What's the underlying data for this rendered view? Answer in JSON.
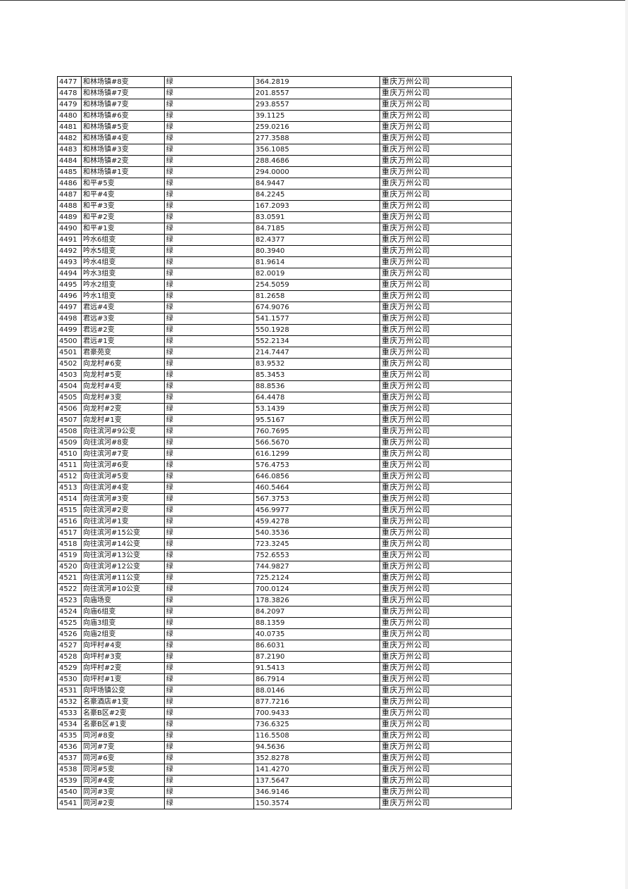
{
  "table": {
    "rows": [
      [
        "4477",
        "和林场镇#8变",
        "绿",
        "364.2819",
        "重庆万州公司"
      ],
      [
        "4478",
        "和林场镇#7变",
        "绿",
        "201.8557",
        "重庆万州公司"
      ],
      [
        "4479",
        "和林场镇#7变",
        "绿",
        "293.8557",
        "重庆万州公司"
      ],
      [
        "4480",
        "和林场镇#6变",
        "绿",
        "39.1125",
        "重庆万州公司"
      ],
      [
        "4481",
        "和林场镇#5变",
        "绿",
        "259.0216",
        "重庆万州公司"
      ],
      [
        "4482",
        "和林场镇#4变",
        "绿",
        "277.3588",
        "重庆万州公司"
      ],
      [
        "4483",
        "和林场镇#3变",
        "绿",
        "356.1085",
        "重庆万州公司"
      ],
      [
        "4484",
        "和林场镇#2变",
        "绿",
        "288.4686",
        "重庆万州公司"
      ],
      [
        "4485",
        "和林场镇#1变",
        "绿",
        "294.0000",
        "重庆万州公司"
      ],
      [
        "4486",
        "和平#5变",
        "绿",
        "84.9447",
        "重庆万州公司"
      ],
      [
        "4487",
        "和平#4变",
        "绿",
        "84.2245",
        "重庆万州公司"
      ],
      [
        "4488",
        "和平#3变",
        "绿",
        "167.2093",
        "重庆万州公司"
      ],
      [
        "4489",
        "和平#2变",
        "绿",
        "83.0591",
        "重庆万州公司"
      ],
      [
        "4490",
        "和平#1变",
        "绿",
        "84.7185",
        "重庆万州公司"
      ],
      [
        "4491",
        "吟水6组变",
        "绿",
        "82.4377",
        "重庆万州公司"
      ],
      [
        "4492",
        "吟水5组变",
        "绿",
        "80.3940",
        "重庆万州公司"
      ],
      [
        "4493",
        "吟水4组变",
        "绿",
        "81.9614",
        "重庆万州公司"
      ],
      [
        "4494",
        "吟水3组变",
        "绿",
        "82.0019",
        "重庆万州公司"
      ],
      [
        "4495",
        "吟水2组变",
        "绿",
        "254.5059",
        "重庆万州公司"
      ],
      [
        "4496",
        "吟水1组变",
        "绿",
        "81.2658",
        "重庆万州公司"
      ],
      [
        "4497",
        "君远#4变",
        "绿",
        "674.9076",
        "重庆万州公司"
      ],
      [
        "4498",
        "君远#3变",
        "绿",
        "541.1577",
        "重庆万州公司"
      ],
      [
        "4499",
        "君远#2变",
        "绿",
        "550.1928",
        "重庆万州公司"
      ],
      [
        "4500",
        "君远#1变",
        "绿",
        "552.2134",
        "重庆万州公司"
      ],
      [
        "4501",
        "君豪苑变",
        "绿",
        "214.7447",
        "重庆万州公司"
      ],
      [
        "4502",
        "向龙村#6变",
        "绿",
        "83.9532",
        "重庆万州公司"
      ],
      [
        "4503",
        "向龙村#5变",
        "绿",
        "85.3453",
        "重庆万州公司"
      ],
      [
        "4504",
        "向龙村#4变",
        "绿",
        "88.8536",
        "重庆万州公司"
      ],
      [
        "4505",
        "向龙村#3变",
        "绿",
        "64.4478",
        "重庆万州公司"
      ],
      [
        "4506",
        "向龙村#2变",
        "绿",
        "53.1439",
        "重庆万州公司"
      ],
      [
        "4507",
        "向龙村#1变",
        "绿",
        "95.5167",
        "重庆万州公司"
      ],
      [
        "4508",
        "向往滨河#9公变",
        "绿",
        "760.7695",
        "重庆万州公司"
      ],
      [
        "4509",
        "向往滨河#8变",
        "绿",
        "566.5670",
        "重庆万州公司"
      ],
      [
        "4510",
        "向往滨河#7变",
        "绿",
        "616.1299",
        "重庆万州公司"
      ],
      [
        "4511",
        "向往滨河#6变",
        "绿",
        "576.4753",
        "重庆万州公司"
      ],
      [
        "4512",
        "向往滨河#5变",
        "绿",
        "646.0856",
        "重庆万州公司"
      ],
      [
        "4513",
        "向往滨河#4变",
        "绿",
        "460.5464",
        "重庆万州公司"
      ],
      [
        "4514",
        "向往滨河#3变",
        "绿",
        "567.3753",
        "重庆万州公司"
      ],
      [
        "4515",
        "向往滨河#2变",
        "绿",
        "456.9977",
        "重庆万州公司"
      ],
      [
        "4516",
        "向往滨河#1变",
        "绿",
        "459.4278",
        "重庆万州公司"
      ],
      [
        "4517",
        "向往滨河#15公变",
        "绿",
        "540.3536",
        "重庆万州公司"
      ],
      [
        "4518",
        "向往滨河#14公变",
        "绿",
        "723.3245",
        "重庆万州公司"
      ],
      [
        "4519",
        "向往滨河#13公变",
        "绿",
        "752.6553",
        "重庆万州公司"
      ],
      [
        "4520",
        "向往滨河#12公变",
        "绿",
        "744.9827",
        "重庆万州公司"
      ],
      [
        "4521",
        "向往滨河#11公变",
        "绿",
        "725.2124",
        "重庆万州公司"
      ],
      [
        "4522",
        "向往滨河#10公变",
        "绿",
        "700.0124",
        "重庆万州公司"
      ],
      [
        "4523",
        "向庙场变",
        "绿",
        "178.3826",
        "重庆万州公司"
      ],
      [
        "4524",
        "向庙6组变",
        "绿",
        "84.2097",
        "重庆万州公司"
      ],
      [
        "4525",
        "向庙3组变",
        "绿",
        "88.1359",
        "重庆万州公司"
      ],
      [
        "4526",
        "向庙2组变",
        "绿",
        "40.0735",
        "重庆万州公司"
      ],
      [
        "4527",
        "向坪村#4变",
        "绿",
        "86.6031",
        "重庆万州公司"
      ],
      [
        "4528",
        "向坪村#3变",
        "绿",
        "87.2190",
        "重庆万州公司"
      ],
      [
        "4529",
        "向坪村#2变",
        "绿",
        "91.5413",
        "重庆万州公司"
      ],
      [
        "4530",
        "向坪村#1变",
        "绿",
        "86.7914",
        "重庆万州公司"
      ],
      [
        "4531",
        "向坪场镇公变",
        "绿",
        "88.0146",
        "重庆万州公司"
      ],
      [
        "4532",
        "名豪酒店#1变",
        "绿",
        "877.7216",
        "重庆万州公司"
      ],
      [
        "4533",
        "名豪B区#2变",
        "绿",
        "700.9433",
        "重庆万州公司"
      ],
      [
        "4534",
        "名豪B区#1变",
        "绿",
        "736.6325",
        "重庆万州公司"
      ],
      [
        "4535",
        "同河#8变",
        "绿",
        "116.5508",
        "重庆万州公司"
      ],
      [
        "4536",
        "同河#7变",
        "绿",
        "94.5636",
        "重庆万州公司"
      ],
      [
        "4537",
        "同河#6变",
        "绿",
        "352.8278",
        "重庆万州公司"
      ],
      [
        "4538",
        "同河#5变",
        "绿",
        "141.4270",
        "重庆万州公司"
      ],
      [
        "4539",
        "同河#4变",
        "绿",
        "137.5647",
        "重庆万州公司"
      ],
      [
        "4540",
        "同河#3变",
        "绿",
        "346.9146",
        "重庆万州公司"
      ],
      [
        "4541",
        "同河#2变",
        "绿",
        "150.3574",
        "重庆万州公司"
      ]
    ]
  }
}
